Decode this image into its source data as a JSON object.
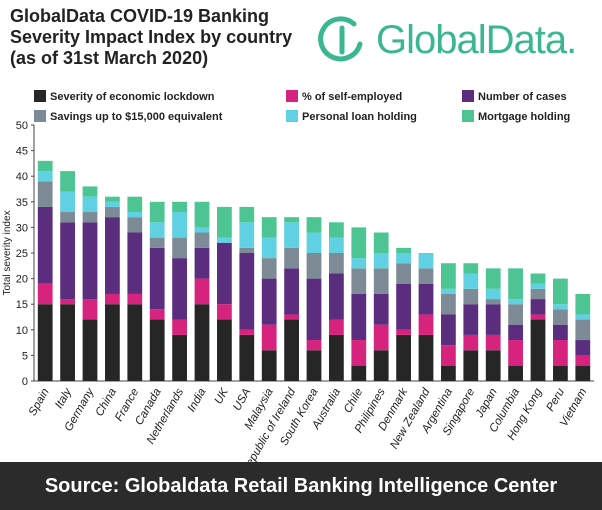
{
  "title_lines": [
    "GlobalData COVID-19 Banking",
    "Severity Impact Index by country",
    "(as of 31st March 2020)"
  ],
  "logo_text": "GlobalData.",
  "footer_text": "Source: Globaldata Retail Banking Intelligence Center",
  "colors": {
    "lockdown": "#262626",
    "self_employed": "#d6247e",
    "cases": "#5a2d7e",
    "savings": "#7d8b96",
    "personal_loan": "#5fd1e2",
    "mortgage": "#4cc593",
    "brand": "#3bb78f"
  },
  "chart_data": {
    "type": "bar",
    "stacked": true,
    "ylabel": "Total severity index",
    "xlabel": "",
    "ylim": [
      0,
      50
    ],
    "yticks": [
      0,
      5,
      10,
      15,
      20,
      25,
      30,
      35,
      40,
      45,
      50
    ],
    "grid": false,
    "legend_position": "top",
    "categories": [
      "Spain",
      "Italy",
      "Germany",
      "China",
      "France",
      "Canada",
      "Netherlands",
      "India",
      "UK",
      "USA",
      "Malaysia",
      "Republic of Ireland",
      "South Korea",
      "Australia",
      "Chile",
      "Philipines",
      "Denmark",
      "New Zealand",
      "Argentina",
      "Singapore",
      "Japan",
      "Columbia",
      "Hong Kong",
      "Peru",
      "Vietnam"
    ],
    "series": [
      {
        "name": "Severity of economic lockdown",
        "color_key": "lockdown",
        "values": [
          15,
          15,
          12,
          15,
          15,
          12,
          9,
          15,
          12,
          9,
          6,
          12,
          6,
          9,
          3,
          6,
          9,
          9,
          3,
          6,
          6,
          3,
          12,
          3,
          3
        ]
      },
      {
        "name": "% of self-employed",
        "color_key": "self_employed",
        "values": [
          4,
          1,
          4,
          2,
          2,
          2,
          3,
          5,
          3,
          1,
          5,
          1,
          2,
          3,
          5,
          5,
          1,
          4,
          4,
          3,
          3,
          5,
          1,
          5,
          2
        ]
      },
      {
        "name": "Number of cases",
        "color_key": "cases",
        "values": [
          15,
          15,
          15,
          15,
          12,
          12,
          12,
          6,
          12,
          15,
          9,
          9,
          12,
          9,
          9,
          6,
          9,
          6,
          6,
          6,
          6,
          3,
          3,
          3,
          3
        ]
      },
      {
        "name": "Savings up to $15,000 equivalent",
        "color_key": "savings",
        "values": [
          5,
          2,
          2,
          2,
          3,
          2,
          4,
          3,
          0,
          1,
          4,
          4,
          5,
          4,
          5,
          5,
          4,
          3,
          4,
          3,
          1,
          4,
          2,
          3,
          4
        ]
      },
      {
        "name": "Personal loan holding",
        "color_key": "personal_loan",
        "values": [
          2,
          4,
          3,
          1,
          1,
          3,
          5,
          1,
          1,
          5,
          4,
          5,
          4,
          3,
          2,
          3,
          2,
          3,
          1,
          3,
          2,
          1,
          1,
          1,
          1
        ]
      },
      {
        "name": "Mortgage holding",
        "color_key": "mortgage",
        "values": [
          2,
          4,
          2,
          1,
          3,
          4,
          2,
          5,
          6,
          3,
          4,
          1,
          3,
          3,
          6,
          4,
          1,
          0,
          5,
          2,
          4,
          6,
          2,
          5,
          4
        ]
      }
    ],
    "totals": [
      43,
      41,
      38,
      36,
      36,
      35,
      35,
      35,
      34,
      34,
      32,
      32,
      32,
      31,
      30,
      29,
      26,
      25,
      23,
      23,
      22,
      22,
      21,
      20,
      17
    ]
  }
}
